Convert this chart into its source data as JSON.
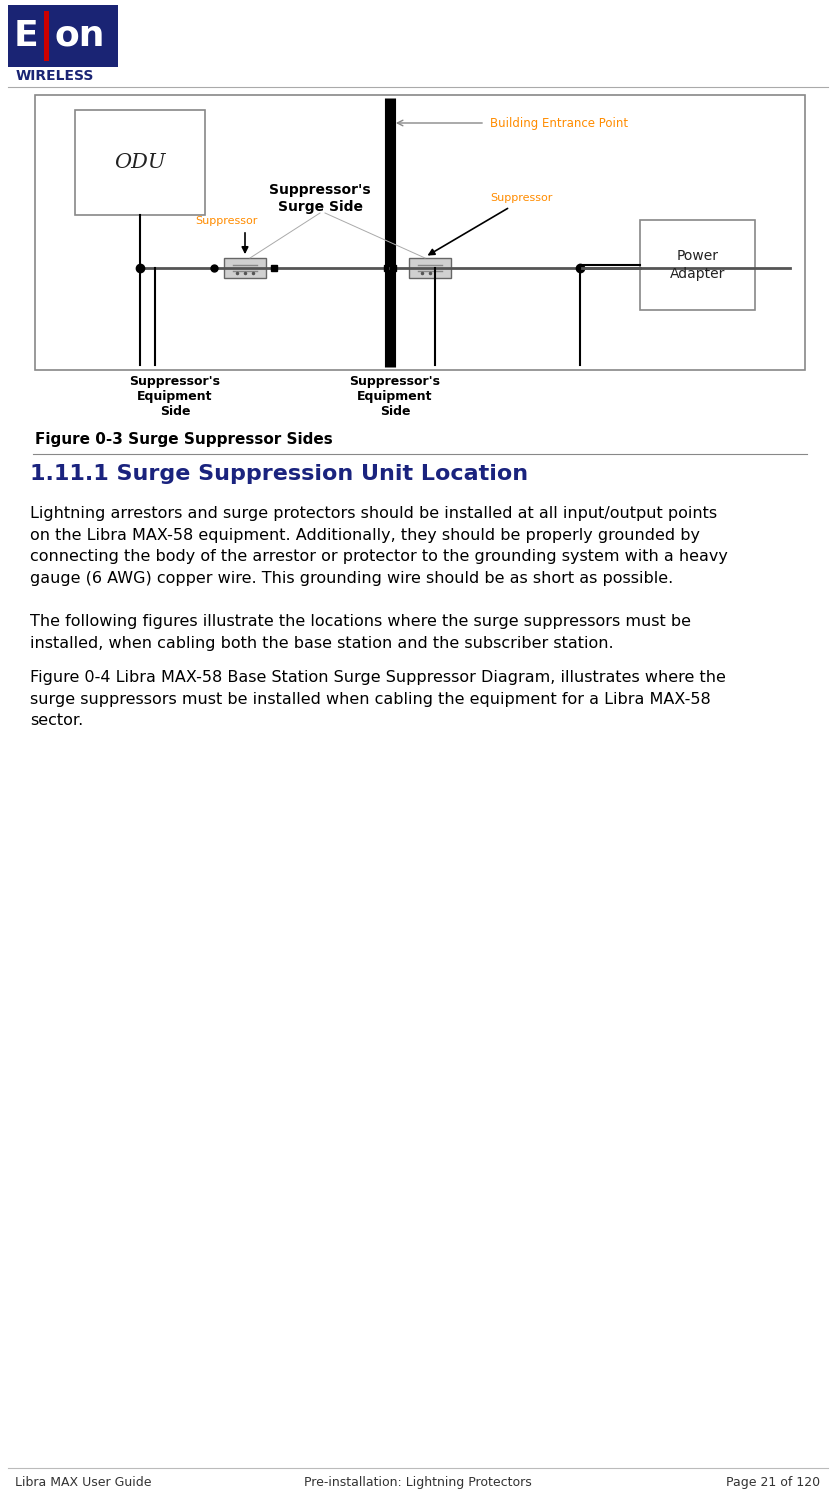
{
  "title": "Figure 0-3 Surge Suppressor Sides",
  "section_title": "1.11.1 Surge Suppression Unit Location",
  "para1": "Lightning arrestors and surge protectors should be installed at all input/output points\non the Libra MAX-58 equipment. Additionally, they should be properly grounded by\nconnecting the body of the arrestor or protector to the grounding system with a heavy\ngauge (6 AWG) copper wire. This grounding wire should be as short as possible.",
  "para2": "The following figures illustrate the locations where the surge suppressors must be\ninstalled, when cabling both the base station and the subscriber station.",
  "para3": "Figure 0-4 Libra MAX-58 Base Station Surge Suppressor Diagram, illustrates where the\nsurge suppressors must be installed when cabling the equipment for a Libra MAX-58\nsector.",
  "footer_left": "Libra MAX User Guide",
  "footer_center": "Pre-installation: Lightning Protectors",
  "footer_right": "Page 21 of 120",
  "bg_color": "#ffffff",
  "orange_color": "#FF8C00",
  "navy_color": "#1a237e",
  "dark_gray": "#555555",
  "logo_navy": "#1a2474",
  "logo_red": "#cc0000"
}
